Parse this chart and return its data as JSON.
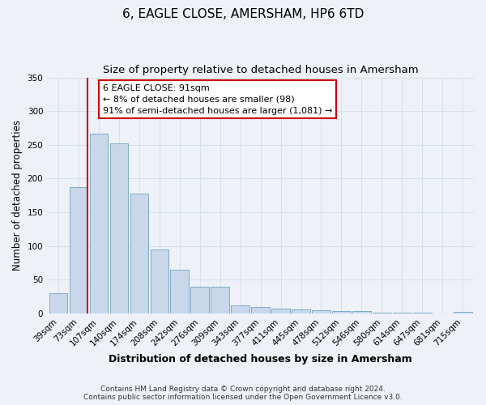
{
  "title": "6, EAGLE CLOSE, AMERSHAM, HP6 6TD",
  "subtitle": "Size of property relative to detached houses in Amersham",
  "xlabel": "Distribution of detached houses by size in Amersham",
  "ylabel": "Number of detached properties",
  "categories": [
    "39sqm",
    "73sqm",
    "107sqm",
    "140sqm",
    "174sqm",
    "208sqm",
    "242sqm",
    "276sqm",
    "309sqm",
    "343sqm",
    "377sqm",
    "411sqm",
    "445sqm",
    "478sqm",
    "512sqm",
    "546sqm",
    "580sqm",
    "614sqm",
    "647sqm",
    "681sqm",
    "715sqm"
  ],
  "values": [
    30,
    187,
    267,
    252,
    178,
    95,
    65,
    40,
    40,
    12,
    9,
    7,
    6,
    5,
    4,
    3,
    1,
    1,
    1,
    0,
    2
  ],
  "bar_color": "#c8d8ea",
  "bar_edge_color": "#6fa0c0",
  "vline_color": "#cc0000",
  "ylim": [
    0,
    350
  ],
  "yticks": [
    0,
    50,
    100,
    150,
    200,
    250,
    300,
    350
  ],
  "annotation_title": "6 EAGLE CLOSE: 91sqm",
  "annotation_line1": "← 8% of detached houses are smaller (98)",
  "annotation_line2": "91% of semi-detached houses are larger (1,081) →",
  "annotation_box_facecolor": "#ffffff",
  "annotation_box_edgecolor": "#cc0000",
  "footer_line1": "Contains HM Land Registry data © Crown copyright and database right 2024.",
  "footer_line2": "Contains public sector information licensed under the Open Government Licence v3.0.",
  "bg_color": "#eef2f8",
  "grid_color": "#d8e0ec",
  "title_fontsize": 11,
  "subtitle_fontsize": 9.5,
  "xlabel_fontsize": 9,
  "ylabel_fontsize": 8.5,
  "tick_fontsize": 7.5,
  "annotation_fontsize": 8,
  "footer_fontsize": 6.5
}
